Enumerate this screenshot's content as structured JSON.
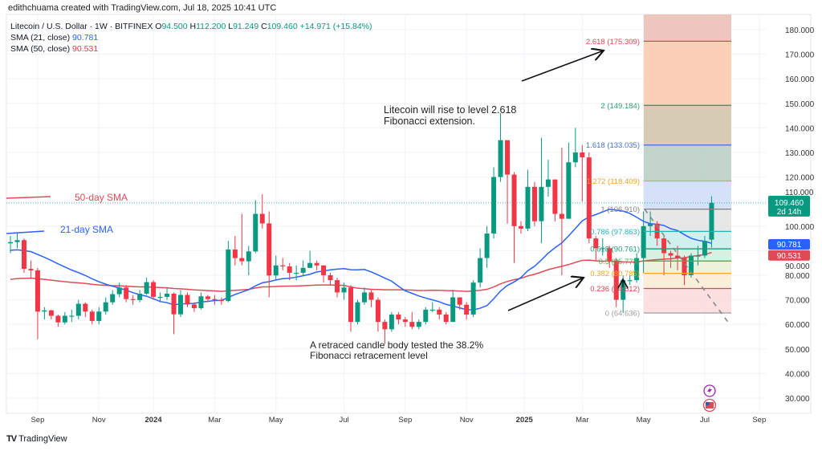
{
  "header": {
    "credit": "edithchuama created with TradingView.com, Jul 18, 2025 10:41 UTC",
    "symbol": "Litecoin / U.S. Dollar · 1W · BITFINEX",
    "o_label": "O",
    "o": "94.500",
    "h_label": "H",
    "h": "112.200",
    "l_label": "L",
    "l": "91.249",
    "c_label": "C",
    "c": "109.460",
    "change": "+14.971 (+15.84%)",
    "sma21_label": "SMA (21, close)",
    "sma21_value": "90.781",
    "sma50_label": "SMA (50, close)",
    "sma50_value": "90.531"
  },
  "footer": {
    "logo": "TV",
    "brand": "TradingView"
  },
  "colors": {
    "up": "#089981",
    "down": "#f23645",
    "sma21": "#2962ff",
    "sma50": "#e04a55"
  },
  "chart_data": {
    "type": "candlestick",
    "title": "Litecoin / U.S. Dollar · 1W · BITFINEX",
    "ylim": [
      25,
      185
    ],
    "y_ticks": [
      "30.000",
      "40.000",
      "50.000",
      "60.000",
      "70.000",
      "80.000",
      "90.000",
      "100.000",
      "110.000",
      "120.000",
      "130.000",
      "140.000",
      "150.000",
      "160.000",
      "170.000",
      "180.000"
    ],
    "x_ticks": [
      {
        "label": "Sep",
        "bold": false,
        "week": 4
      },
      {
        "label": "Nov",
        "bold": false,
        "week": 13
      },
      {
        "label": "2024",
        "bold": true,
        "week": 21
      },
      {
        "label": "Mar",
        "bold": false,
        "week": 30
      },
      {
        "label": "May",
        "bold": false,
        "week": 39
      },
      {
        "label": "Jul",
        "bold": false,
        "week": 49
      },
      {
        "label": "Sep",
        "bold": false,
        "week": 58
      },
      {
        "label": "Nov",
        "bold": false,
        "week": 67
      },
      {
        "label": "2025",
        "bold": true,
        "week": 75.5
      },
      {
        "label": "Mar",
        "bold": false,
        "week": 84
      },
      {
        "label": "May",
        "bold": false,
        "week": 93
      },
      {
        "label": "Jul",
        "bold": false,
        "week": 102
      },
      {
        "label": "Sep",
        "bold": false,
        "week": 110
      }
    ],
    "first_open": 93,
    "last_open": 94.5,
    "candles_close_high_low": [
      [
        93.5,
        96,
        89
      ],
      [
        94.3,
        97,
        91
      ],
      [
        82.6,
        95,
        81
      ],
      [
        82,
        86,
        79
      ],
      [
        65.2,
        83,
        54
      ],
      [
        65.7,
        67,
        62
      ],
      [
        63.5,
        66,
        62
      ],
      [
        60.8,
        64,
        59
      ],
      [
        63.5,
        65,
        60
      ],
      [
        63.5,
        66,
        61
      ],
      [
        68.4,
        70,
        62
      ],
      [
        65.2,
        69,
        63
      ],
      [
        61.4,
        66,
        60
      ],
      [
        65.2,
        67,
        60
      ],
      [
        69,
        71,
        64
      ],
      [
        72.3,
        74,
        68
      ],
      [
        75,
        77,
        71
      ],
      [
        70.3,
        76,
        69
      ],
      [
        69.9,
        72,
        68
      ],
      [
        72.5,
        74,
        69
      ],
      [
        77.2,
        79,
        72
      ],
      [
        71.2,
        78,
        70
      ],
      [
        71.2,
        73,
        69
      ],
      [
        72.5,
        75,
        70
      ],
      [
        64.1,
        73,
        56
      ],
      [
        72,
        74,
        63
      ],
      [
        68.1,
        73,
        67
      ],
      [
        66.6,
        69,
        65
      ],
      [
        71.4,
        73,
        66
      ],
      [
        70.3,
        72,
        69
      ],
      [
        70,
        72,
        68
      ],
      [
        69.5,
        71,
        68
      ],
      [
        90.5,
        94,
        69
      ],
      [
        87,
        96,
        84
      ],
      [
        85.7,
        105,
        84
      ],
      [
        89.7,
        92,
        80
      ],
      [
        105,
        110.6,
        89
      ],
      [
        101.1,
        113,
        99
      ],
      [
        79.9,
        106,
        71
      ],
      [
        84,
        88,
        78
      ],
      [
        83.6,
        87,
        82
      ],
      [
        81,
        85,
        78
      ],
      [
        81,
        84,
        78
      ],
      [
        83,
        86,
        80
      ],
      [
        85,
        90,
        83
      ],
      [
        84,
        86,
        82
      ],
      [
        80,
        84,
        77
      ],
      [
        78,
        81,
        76
      ],
      [
        73,
        79,
        71
      ],
      [
        75,
        77,
        70
      ],
      [
        61,
        76,
        57
      ],
      [
        69,
        70,
        60
      ],
      [
        73,
        75,
        68
      ],
      [
        70,
        74,
        67
      ],
      [
        61,
        71,
        57
      ],
      [
        58,
        62,
        52
      ],
      [
        64,
        65,
        57
      ],
      [
        62,
        65,
        60
      ],
      [
        61,
        63,
        59
      ],
      [
        59,
        65,
        58
      ],
      [
        61,
        62,
        58
      ],
      [
        66,
        67,
        60
      ],
      [
        66,
        69,
        65
      ],
      [
        64,
        67,
        62
      ],
      [
        61,
        65,
        60
      ],
      [
        71,
        74,
        61
      ],
      [
        68,
        71,
        66
      ],
      [
        64,
        69,
        62
      ],
      [
        77,
        78,
        63
      ],
      [
        87,
        91,
        75
      ],
      [
        97,
        100,
        83
      ],
      [
        120,
        124,
        95
      ],
      [
        135,
        146,
        118
      ],
      [
        121,
        135,
        101
      ],
      [
        100,
        122,
        85
      ],
      [
        99,
        102,
        97
      ],
      [
        116,
        123,
        98
      ],
      [
        102,
        118,
        100
      ],
      [
        116,
        136,
        93
      ],
      [
        119,
        127,
        112
      ],
      [
        105,
        119,
        102
      ],
      [
        103,
        132,
        80
      ],
      [
        126,
        134,
        103
      ],
      [
        130,
        140,
        124
      ],
      [
        128,
        133,
        110
      ],
      [
        95,
        130,
        93
      ],
      [
        91,
        96,
        86
      ],
      [
        91,
        95,
        88
      ],
      [
        86,
        92,
        83
      ],
      [
        70,
        87,
        67
      ],
      [
        78,
        80,
        64.6
      ],
      [
        78,
        80,
        76
      ],
      [
        87,
        89,
        77
      ],
      [
        100,
        106,
        81
      ],
      [
        101,
        106,
        96
      ],
      [
        95,
        102,
        92
      ],
      [
        89,
        96,
        80
      ],
      [
        88,
        90,
        83
      ],
      [
        87,
        92,
        82
      ],
      [
        80,
        88,
        76
      ],
      [
        88,
        89,
        79
      ],
      [
        88,
        92,
        84
      ],
      [
        94,
        96,
        87
      ],
      [
        109.46,
        112.2,
        91.249
      ]
    ],
    "sma_history_pad": {
      "sma21": 90,
      "sma50": 78
    },
    "last_price": {
      "value": "109.460",
      "countdown": "2d 14h"
    },
    "sma21_last": "90.781",
    "sma50_last": "90.531",
    "fibonacci": {
      "anchor_low": 64.636,
      "anchor_high": 106.91,
      "levels": [
        {
          "ratio": "0",
          "price": 64.636,
          "label": "0 (64.636)",
          "color": "#9e9e9e",
          "fill": "#fbd9dc"
        },
        {
          "ratio": "0.236",
          "price": 74.612,
          "label": "0.236 (74.612)",
          "color": "#e0454f",
          "fill": "#fdebd3"
        },
        {
          "ratio": "0.382",
          "price": 80.785,
          "label": "0.382 (80.785)",
          "color": "#f5a623",
          "fill": "#e8f1d6"
        },
        {
          "ratio": "0.5",
          "price": 85.773,
          "label": "0.5 (85.773)",
          "color": "#4caf50",
          "fill": "#d2eede"
        },
        {
          "ratio": "0.618",
          "price": 90.761,
          "label": "0.618 (90.761)",
          "color": "#1f9b78",
          "fill": "#c9ecea"
        },
        {
          "ratio": "0.786",
          "price": 97.863,
          "label": "0.786 (97.863)",
          "color": "#22b5b5",
          "fill": "#e3e3e3"
        },
        {
          "ratio": "1",
          "price": 106.91,
          "label": "1 (106.910)",
          "color": "#808080",
          "fill": "#cddcf7"
        },
        {
          "ratio": "1.272",
          "price": 118.409,
          "label": "1.272 (118.409)",
          "color": "#f2a229",
          "fill": "#b7cdc2"
        },
        {
          "ratio": "1.618",
          "price": 133.035,
          "label": "1.618 (133.035)",
          "color": "#3f6fd8",
          "fill": "#d0c3a6"
        },
        {
          "ratio": "2",
          "price": 149.184,
          "label": "2 (149.184)",
          "color": "#2e9e6f",
          "fill": "#fac8a9"
        },
        {
          "ratio": "2.618",
          "price": 175.309,
          "label": "2.618 (175.309)",
          "color": "#e0454f",
          "fill": "#ebbcb3"
        }
      ]
    },
    "annotations": {
      "forecast_line1": "Litecoin  will rise to level 2.618",
      "forecast_line2": "Fibonacci extension.",
      "retrace_line1": "A retraced candle body tested the 38.2%",
      "retrace_line2": "Fibonacci retracement level",
      "sma50_label": "50-day SMA",
      "sma21_label": "21-day SMA"
    }
  }
}
